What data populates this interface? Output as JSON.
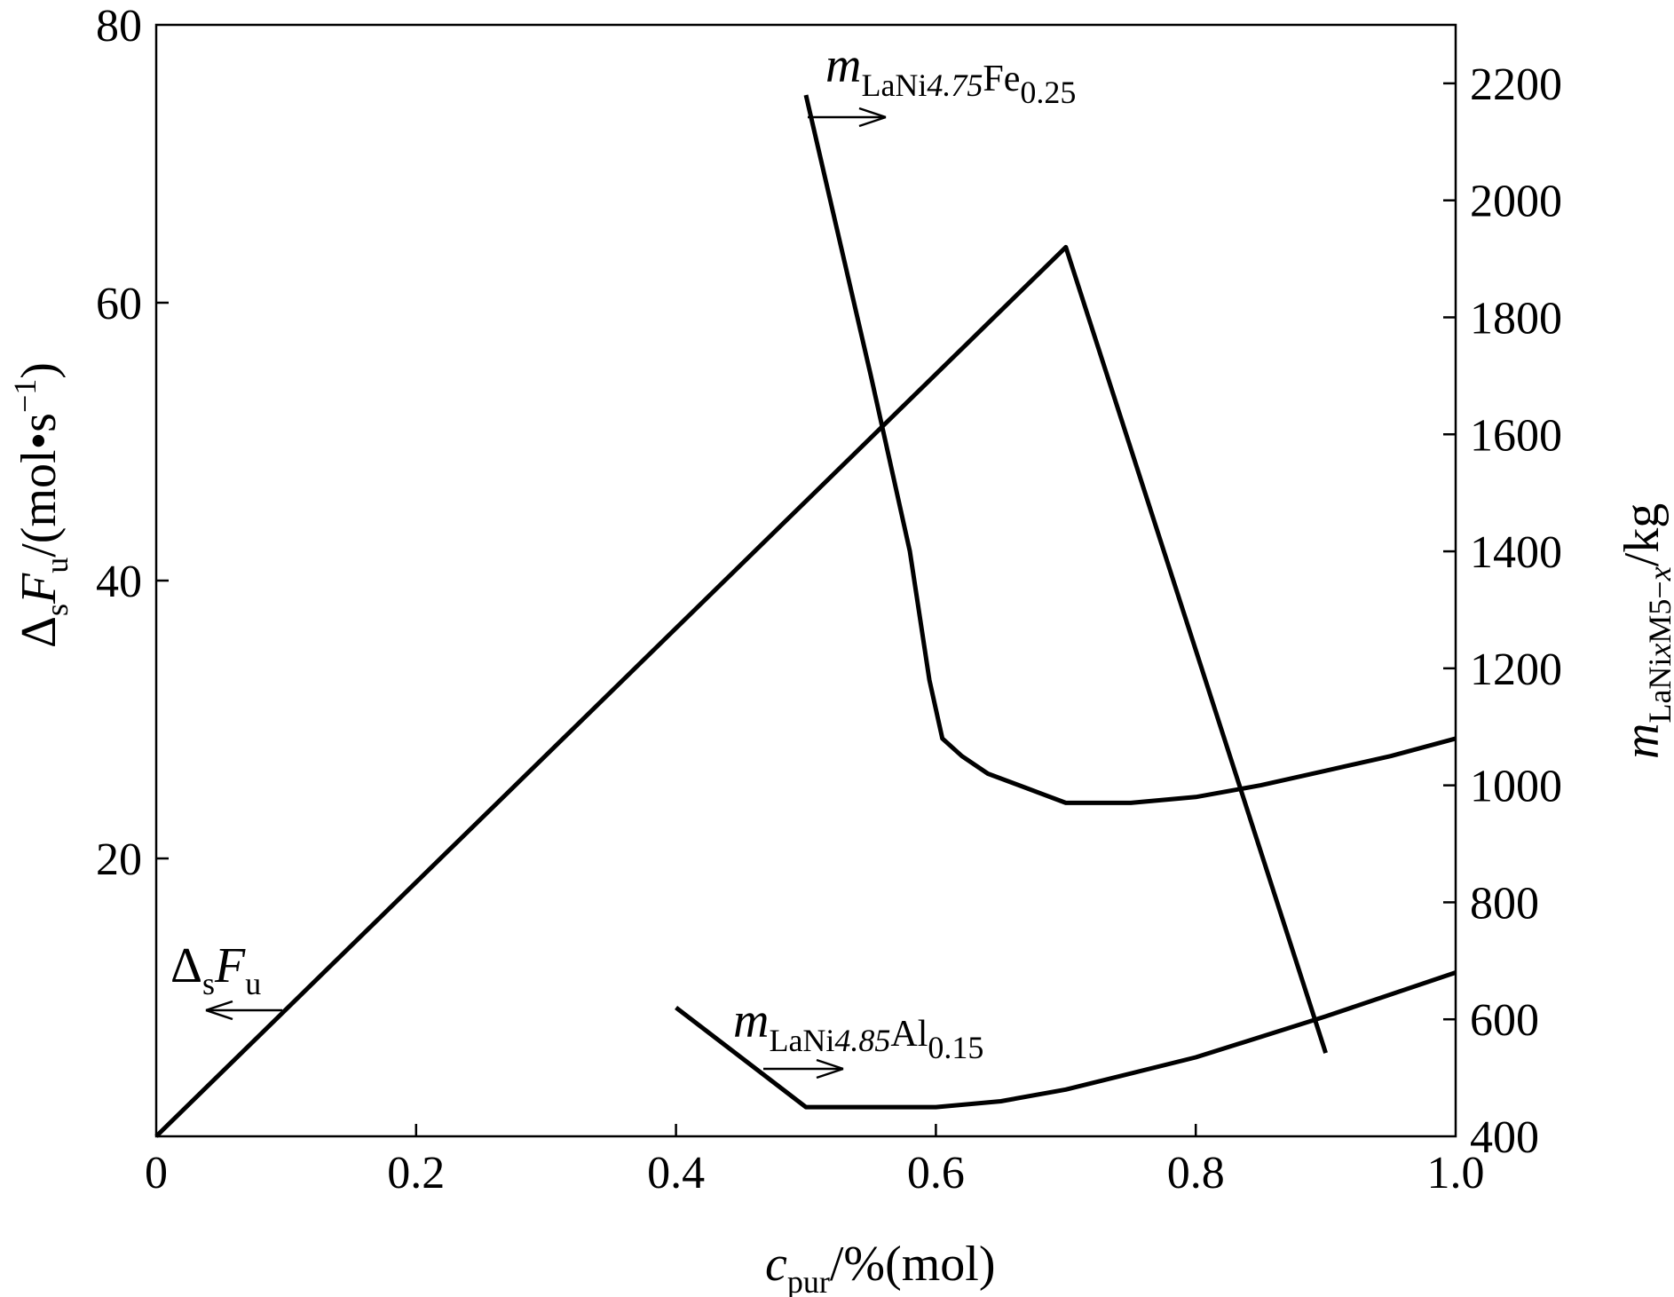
{
  "chart_data": {
    "type": "line",
    "x": {
      "label_main": "c",
      "label_sub": "pur",
      "label_rest": "/%(mol)",
      "range": [
        0,
        1.0
      ],
      "ticks": [
        0,
        0.2,
        0.4,
        0.6,
        0.8,
        1.0
      ],
      "tick_labels": [
        "0",
        "0.2",
        "0.4",
        "0.6",
        "0.8",
        "1.0"
      ]
    },
    "y_left": {
      "label_delta": "Δ",
      "label_delta_sub": "s",
      "label_F": "F",
      "label_F_sub": "u",
      "label_rest": "/(mol•s",
      "label_sup": "−1",
      "label_close": ")",
      "range": [
        0,
        80
      ],
      "ticks": [
        20,
        40,
        60,
        80
      ],
      "tick_labels": [
        "20",
        "40",
        "60",
        "80"
      ]
    },
    "y_right": {
      "label_m": "m",
      "label_m_sub": "LaNi",
      "label_x": "x",
      "label_M": "M",
      "label_5": "5−",
      "label_x2": "x",
      "label_rest": "/kg",
      "range": [
        400,
        2300
      ],
      "ticks": [
        400,
        600,
        800,
        1000,
        1200,
        1400,
        1600,
        1800,
        2000,
        2200
      ],
      "tick_labels": [
        "400",
        "600",
        "800",
        "1000",
        "1200",
        "1400",
        "1600",
        "1800",
        "2000",
        "2200"
      ]
    },
    "grid": false,
    "series": [
      {
        "name": "ΔsFu",
        "axis": "left",
        "x": [
          0,
          0.7,
          0.9
        ],
        "y": [
          0,
          64,
          6
        ]
      },
      {
        "name": "mLaNi4.75Fe0.25",
        "axis": "right",
        "x": [
          0.5,
          0.55,
          0.58,
          0.595,
          0.605,
          0.62,
          0.64,
          0.67,
          0.7,
          0.75,
          0.8,
          0.85,
          0.9,
          0.95,
          1.0
        ],
        "y": [
          2180,
          1700,
          1400,
          1180,
          1080,
          1050,
          1020,
          995,
          970,
          970,
          980,
          1000,
          1025,
          1050,
          1080
        ]
      },
      {
        "name": "mLaNi4.85Al0.15",
        "axis": "right",
        "x": [
          0.4,
          0.5,
          0.6,
          0.65,
          0.7,
          0.8,
          0.9,
          1.0
        ],
        "y": [
          620,
          450,
          450,
          460,
          480,
          535,
          605,
          680
        ]
      }
    ],
    "annotations": {
      "fe_label": {
        "m": "m",
        "sub1": "LaNi",
        "mid": "4.75",
        "fe": "Fe",
        "sub2": "0.25"
      },
      "al_label": {
        "m": "m",
        "sub1": "LaNi",
        "mid": "4.85",
        "al": "Al",
        "sub2": "0.15"
      },
      "dsfu_label": {
        "delta": "Δ",
        "s": "s",
        "F": "F",
        "u": "u"
      }
    }
  }
}
